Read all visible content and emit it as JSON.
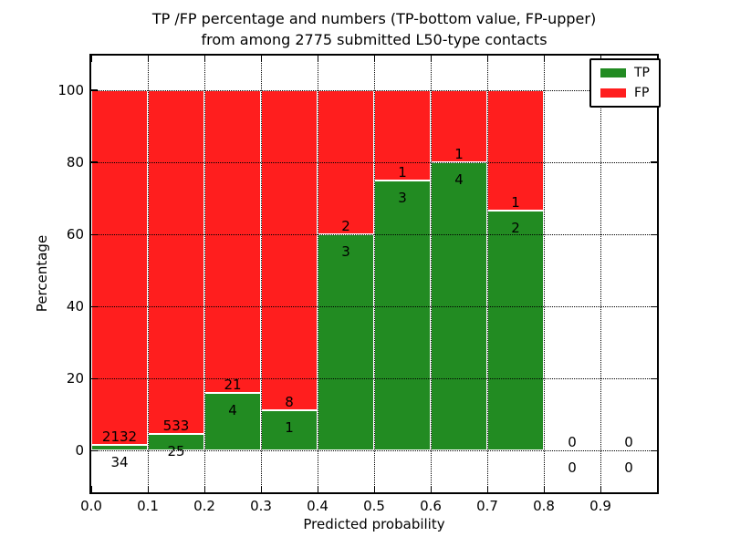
{
  "title": {
    "line1": "TP /FP percentage and numbers (TP-bottom value, FP-upper)",
    "line2": "from among 2775 submitted L50-type contacts"
  },
  "axes": {
    "xlabel": "Predicted probability",
    "ylabel": "Percentage",
    "xtick_labels": [
      "0.0",
      "0.1",
      "0.2",
      "0.3",
      "0.4",
      "0.5",
      "0.6",
      "0.7",
      "0.8",
      "0.9"
    ],
    "ytick_labels": [
      "0",
      "20",
      "40",
      "60",
      "80",
      "100"
    ]
  },
  "legend": {
    "entries": [
      {
        "label": "TP",
        "color": "#228B22"
      },
      {
        "label": "FP",
        "color": "#ff1e1e"
      }
    ]
  },
  "chart_data": {
    "type": "bar",
    "stacked": true,
    "title": "TP /FP percentage and numbers (TP-bottom value, FP-upper) from among 2775 submitted L50-type contacts",
    "xlabel": "Predicted probability",
    "ylabel": "Percentage",
    "total_contacts": 2775,
    "bin_start": [
      0.0,
      0.1,
      0.2,
      0.3,
      0.4,
      0.5,
      0.6,
      0.7,
      0.8,
      0.9
    ],
    "bin_width": 0.1,
    "series": [
      {
        "name": "TP",
        "color": "#228B22",
        "counts": [
          34,
          25,
          4,
          1,
          3,
          3,
          4,
          2,
          0,
          0
        ],
        "percent": [
          1.57,
          4.48,
          16.0,
          11.11,
          60.0,
          75.0,
          80.0,
          66.67,
          0.0,
          0.0
        ]
      },
      {
        "name": "FP",
        "color": "#ff1e1e",
        "counts": [
          2132,
          533,
          21,
          8,
          2,
          1,
          1,
          1,
          0,
          0
        ],
        "percent": [
          98.43,
          95.52,
          84.0,
          88.89,
          40.0,
          25.0,
          20.0,
          33.33,
          0.0,
          0.0
        ]
      }
    ],
    "xticks": [
      0.0,
      0.1,
      0.2,
      0.3,
      0.4,
      0.5,
      0.6,
      0.7,
      0.8,
      0.9
    ],
    "yticks": [
      0,
      20,
      40,
      60,
      80,
      100
    ],
    "xlim": [
      0.0,
      1.0
    ],
    "ylim": [
      -11.6,
      109.6
    ],
    "grid": "dotted",
    "bar_edge_color": "#ffffff",
    "legend_position": "upper right"
  }
}
